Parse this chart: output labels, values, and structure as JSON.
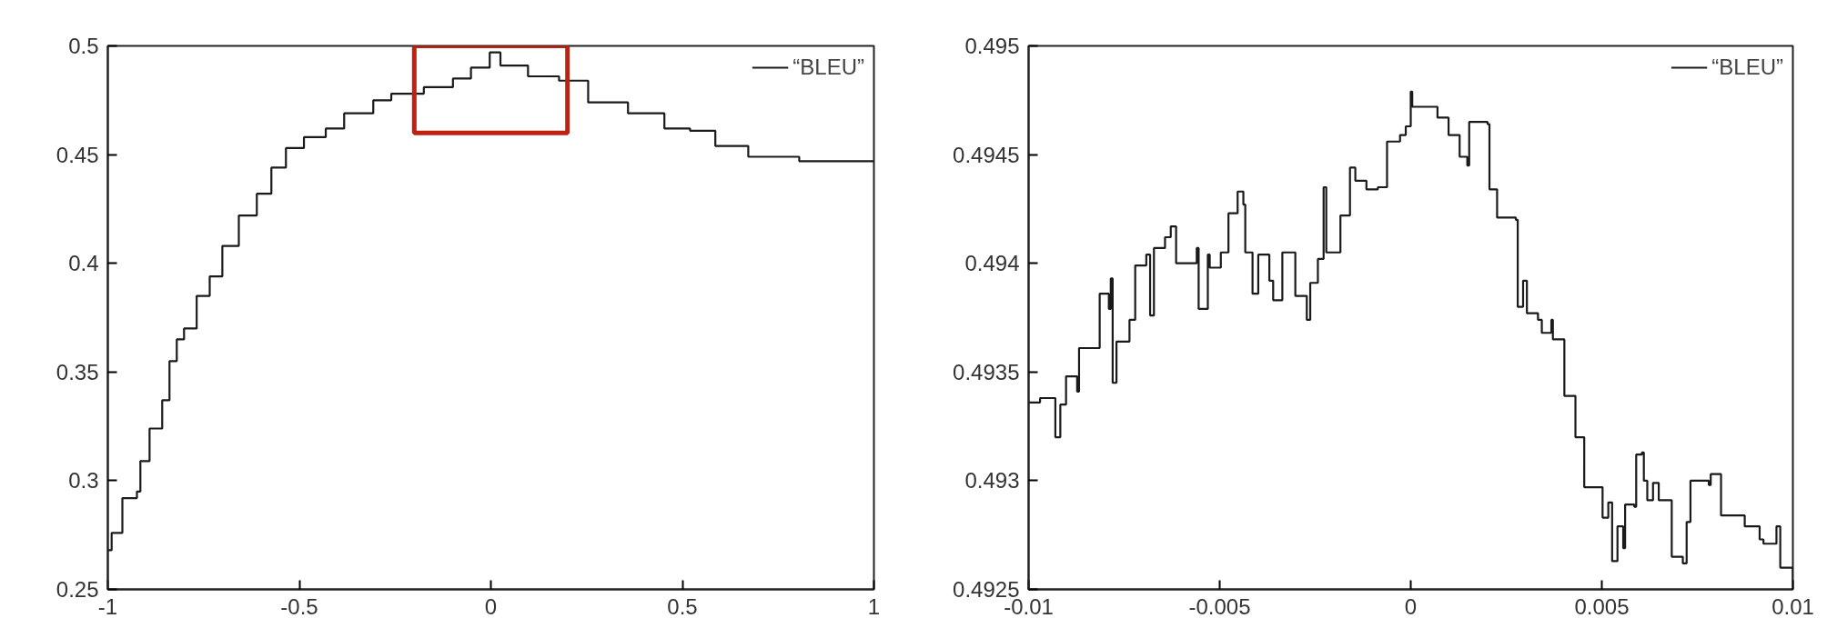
{
  "chart_data": [
    {
      "type": "step",
      "xlim": [
        -1,
        1
      ],
      "ylim": [
        0.25,
        0.5
      ],
      "xticks": [
        -1,
        -0.5,
        0,
        0.5,
        1
      ],
      "yticks": [
        0.25,
        0.3,
        0.35,
        0.4,
        0.45,
        0.5
      ],
      "grid": false,
      "legend": "top right",
      "series": [
        {
          "name": "“BLEU”",
          "color": "#1a1a1a",
          "x": [
            -1,
            -0.99,
            -0.962,
            -0.924,
            -0.915,
            -0.891,
            -0.858,
            -0.839,
            -0.82,
            -0.801,
            -0.768,
            -0.734,
            -0.701,
            -0.658,
            -0.611,
            -0.573,
            -0.535,
            -0.488,
            -0.431,
            -0.383,
            -0.307,
            -0.26,
            -0.175,
            -0.099,
            -0.052,
            -0.003,
            0.025,
            0.097,
            0.178,
            0.254,
            0.358,
            0.453,
            0.52,
            0.586,
            0.672,
            0.776,
            0.805,
            1.0
          ],
          "values": [
            0.268,
            0.276,
            0.292,
            0.295,
            0.309,
            0.324,
            0.337,
            0.355,
            0.365,
            0.37,
            0.385,
            0.394,
            0.408,
            0.422,
            0.432,
            0.444,
            0.453,
            0.458,
            0.462,
            0.469,
            0.475,
            0.478,
            0.481,
            0.485,
            0.49,
            0.497,
            0.491,
            0.486,
            0.484,
            0.474,
            0.469,
            0.462,
            0.461,
            0.454,
            0.449,
            0.449,
            0.447,
            0.447
          ]
        }
      ]
    },
    {
      "type": "step",
      "xlim": [
        -0.01,
        0.01
      ],
      "ylim": [
        0.4925,
        0.495
      ],
      "xticks": [
        -0.01,
        -0.005,
        0,
        0.005,
        0.01
      ],
      "yticks": [
        0.4925,
        0.493,
        0.4935,
        0.494,
        0.4945,
        0.495
      ],
      "grid": false,
      "legend": "top right",
      "series": [
        {
          "name": "“BLEU”",
          "color": "#1a1a1a",
          "x": [
            -0.01,
            -0.0097,
            -0.0093,
            -0.00917,
            -0.00902,
            -0.00873,
            -0.00868,
            -0.00819,
            -0.00814,
            -0.0079,
            -0.00785,
            -0.0078,
            -0.0077,
            -0.00736,
            -0.00721,
            -0.00692,
            -0.00682,
            -0.00672,
            -0.00643,
            -0.00628,
            -0.00614,
            -0.0057,
            -0.0056,
            -0.00555,
            -0.00531,
            -0.00526,
            -0.00497,
            -0.00477,
            -0.00453,
            -0.00438,
            -0.00433,
            -0.00414,
            -0.00399,
            -0.0037,
            -0.0036,
            -0.00336,
            -0.00302,
            -0.00272,
            -0.00263,
            -0.00243,
            -0.00228,
            -0.00221,
            -0.00184,
            -0.00159,
            -0.00145,
            -0.00116,
            -0.00086,
            -0.00062,
            -0.00028,
            -0.00013,
            0.0,
            4e-05,
            0.0006,
            0.0007,
            0.00099,
            0.00128,
            0.00148,
            0.00153,
            0.00201,
            0.00206,
            0.00226,
            0.00275,
            0.0028,
            0.00294,
            0.00304,
            0.00333,
            0.00343,
            0.00368,
            0.00372,
            0.00402,
            0.00431,
            0.00454,
            0.00497,
            0.00502,
            0.00517,
            0.00527,
            0.00541,
            0.00556,
            0.00561,
            0.00585,
            0.0059,
            0.00605,
            0.0061,
            0.00619,
            0.00634,
            0.00649,
            0.00683,
            0.00712,
            0.00722,
            0.00732,
            0.0078,
            0.00785,
            0.0081,
            0.00812,
            0.00869,
            0.00874,
            0.00913,
            0.00923,
            0.00957,
            0.00967,
            0.01
          ],
          "values": [
            0.49336,
            0.49338,
            0.4932,
            0.49335,
            0.49348,
            0.49341,
            0.49361,
            0.49361,
            0.49386,
            0.49379,
            0.49393,
            0.49345,
            0.49364,
            0.49374,
            0.49399,
            0.49404,
            0.49376,
            0.49407,
            0.49412,
            0.49417,
            0.494,
            0.494,
            0.49407,
            0.49379,
            0.49404,
            0.49398,
            0.49405,
            0.49423,
            0.49433,
            0.49427,
            0.49405,
            0.49386,
            0.49404,
            0.49392,
            0.49383,
            0.49405,
            0.49385,
            0.49374,
            0.49391,
            0.49402,
            0.49435,
            0.49405,
            0.49422,
            0.49444,
            0.49438,
            0.49434,
            0.49435,
            0.49456,
            0.49459,
            0.49463,
            0.49479,
            0.49472,
            0.49472,
            0.49467,
            0.49459,
            0.49449,
            0.49445,
            0.49465,
            0.49464,
            0.49434,
            0.49421,
            0.4942,
            0.4938,
            0.49392,
            0.49377,
            0.49374,
            0.49368,
            0.49374,
            0.49365,
            0.49339,
            0.4932,
            0.49297,
            0.49297,
            0.49283,
            0.4929,
            0.49263,
            0.49279,
            0.49269,
            0.49289,
            0.49288,
            0.49312,
            0.49313,
            0.493,
            0.49291,
            0.49299,
            0.49291,
            0.49265,
            0.49262,
            0.49281,
            0.493,
            0.49298,
            0.49303,
            0.49303,
            0.49284,
            0.49284,
            0.49279,
            0.49273,
            0.49271,
            0.49279,
            0.4926,
            0.49254
          ]
        }
      ]
    }
  ]
}
